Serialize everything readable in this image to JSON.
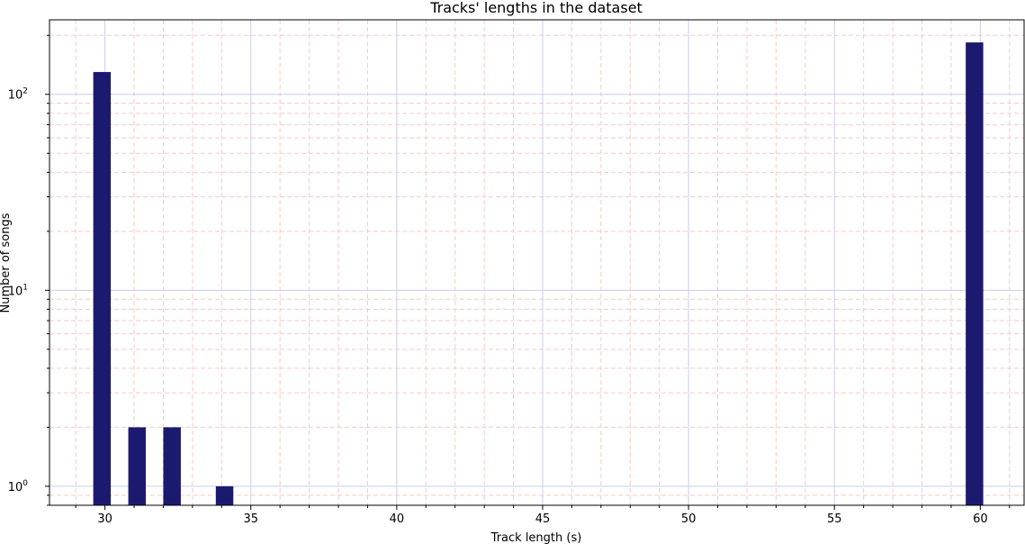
{
  "chart_data": {
    "type": "bar",
    "title": "Tracks' lengths in the dataset",
    "xlabel": "Track length (s)",
    "ylabel": "Number of songs",
    "yscale": "log",
    "xlim": [
      28.1,
      61.5
    ],
    "ylim": [
      0.8,
      240
    ],
    "bar_width": 0.6,
    "x_ticks": [
      30,
      35,
      40,
      45,
      50,
      55,
      60
    ],
    "y_ticks": [
      {
        "value": 1,
        "base": "10",
        "exp": "0"
      },
      {
        "value": 10,
        "base": "10",
        "exp": "1"
      },
      {
        "value": 100,
        "base": "10",
        "exp": "2"
      }
    ],
    "grid": {
      "major": true,
      "minor": true,
      "major_color": "#ccccee",
      "minor_color": "#f6caca"
    },
    "bar_color": "#1c1a6f",
    "bars": [
      {
        "x": 29.9,
        "value": 130
      },
      {
        "x": 31.1,
        "value": 2
      },
      {
        "x": 32.3,
        "value": 2
      },
      {
        "x": 34.1,
        "value": 1
      },
      {
        "x": 59.8,
        "value": 184
      }
    ]
  }
}
